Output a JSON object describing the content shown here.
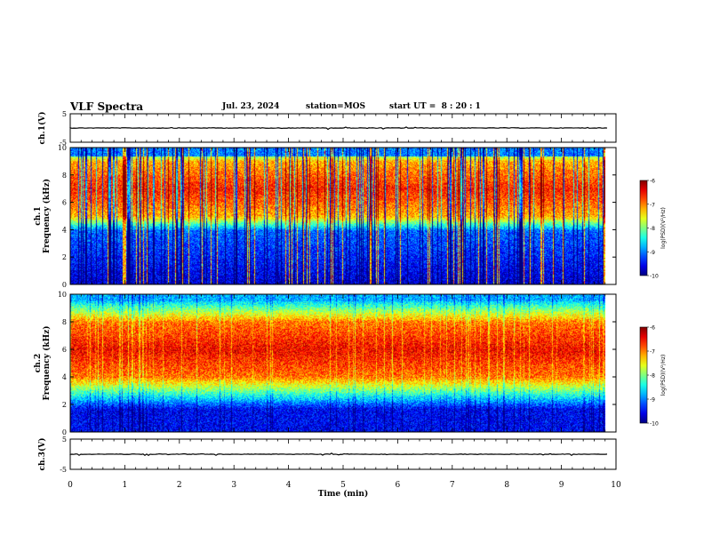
{
  "header": {
    "title": "VLF Spectra",
    "date": "Jul. 23, 2024",
    "station": "station=MOS",
    "start": "start UT =  8 : 20 : 1"
  },
  "chart_data": [
    {
      "type": "line",
      "name": "ch1-waveform",
      "ylabel": "ch.1(V)",
      "ylim": [
        -5,
        5
      ],
      "yticks": [
        "5",
        "-5"
      ],
      "xlim": [
        0,
        10
      ],
      "note": "flat trace near 0 V"
    },
    {
      "type": "heatmap",
      "name": "ch1-spectrogram",
      "ylabel": "ch.1\nFrequency (kHz)",
      "xlim": [
        0,
        10
      ],
      "ylim": [
        0,
        10
      ],
      "yticks": [
        "0",
        "2",
        "4",
        "6",
        "8",
        "10"
      ],
      "colorbar": {
        "label": "log(PSD)(V²/Hz)",
        "range": [
          -10,
          -6
        ],
        "ticks": [
          "-6",
          "-7",
          "-8",
          "-9",
          "-10"
        ]
      },
      "data_extent_min": 9.8,
      "intense_band_khz": [
        5,
        9
      ]
    },
    {
      "type": "heatmap",
      "name": "ch2-spectrogram",
      "ylabel": "ch.2\nFrequency (kHz)",
      "xlim": [
        0,
        10
      ],
      "ylim": [
        0,
        10
      ],
      "yticks": [
        "0",
        "2",
        "4",
        "6",
        "8",
        "10"
      ],
      "colorbar": {
        "label": "log(PSD)(V²/Hz)",
        "range": [
          -10,
          -6
        ],
        "ticks": [
          "-6",
          "-7",
          "-8",
          "-9",
          "-10"
        ]
      },
      "data_extent_min": 9.8,
      "intense_band_khz": [
        4,
        8
      ]
    },
    {
      "type": "line",
      "name": "ch3-waveform",
      "ylabel": "ch.3(V)",
      "ylim": [
        -5,
        5
      ],
      "yticks": [
        "5",
        "-5"
      ],
      "xlim": [
        0,
        10
      ],
      "xlabel": "Time (min)",
      "xticks": [
        "0",
        "1",
        "2",
        "3",
        "4",
        "5",
        "6",
        "7",
        "8",
        "9",
        "10"
      ],
      "note": "flat trace near 0 V"
    }
  ],
  "colors": {
    "frame": "#000000",
    "background": "#ffffff"
  }
}
